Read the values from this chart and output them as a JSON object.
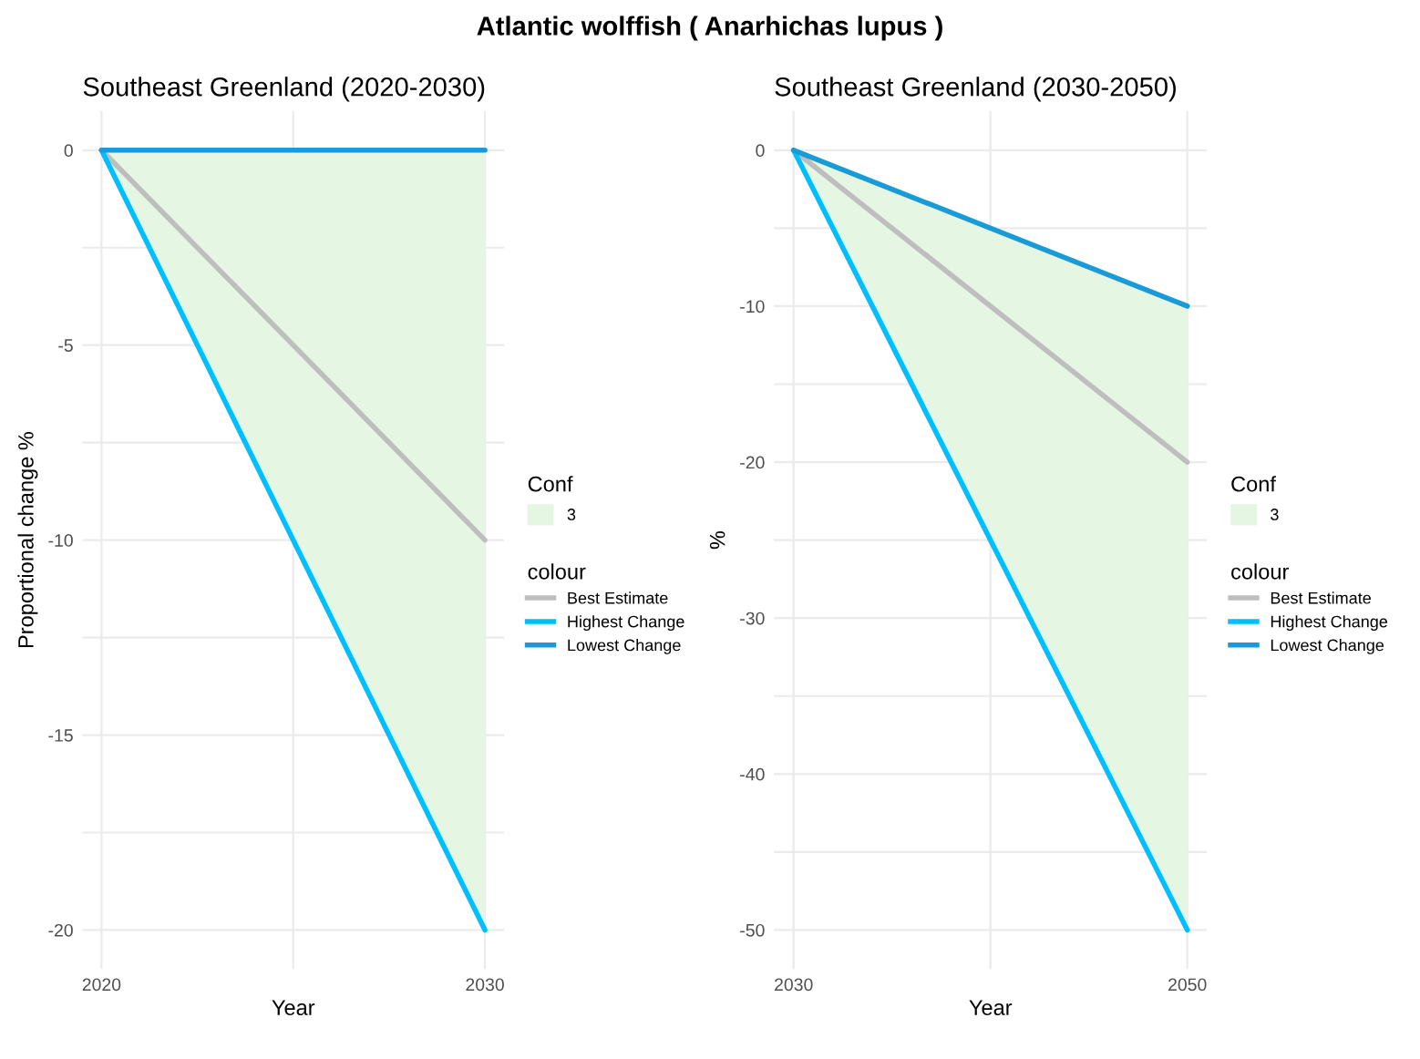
{
  "chart_data": [
    {
      "type": "line",
      "title": "Southeast Greenland (2020-2030)",
      "annotations": [
        "Atlantic wolffish ( Anarhichas lupus )",
        "3"
      ],
      "xlabel": "Year",
      "ylabel": "Proportional change %",
      "legend_title": [
        "Conf",
        "colour"
      ],
      "legend": "right",
      "grid": true,
      "x": [
        2020,
        2030
      ],
      "xlim": [
        2019.5,
        2030.5
      ],
      "xticks": [
        2020,
        {
          "value": 2025,
          "label": null
        },
        2030
      ],
      "ylim": [
        -21,
        1
      ],
      "yticks": [
        0,
        {
          "value": -2.5,
          "label": null
        },
        -5,
        {
          "value": -7.5,
          "label": null
        },
        -10,
        {
          "value": -12.5,
          "label": null
        },
        -15,
        {
          "value": -17.5,
          "label": null
        },
        -20
      ],
      "series": [
        {
          "name": "Best Estimate",
          "color": "#bebebe",
          "values": [
            0,
            -10
          ],
          "lower": [
            0,
            -20
          ],
          "upper": [
            0,
            0
          ]
        },
        {
          "name": "Highest Change",
          "color": "#00bfff",
          "values": [
            0,
            -20
          ]
        },
        {
          "name": "Lowest Change",
          "color": "#1a9ad6",
          "values": [
            0,
            0
          ]
        }
      ]
    },
    {
      "type": "line",
      "title": "Southeast Greenland (2030-2050)",
      "annotations": [
        "3"
      ],
      "xlabel": "Year",
      "ylabel": "%",
      "legend_title": [
        "Conf",
        "colour"
      ],
      "legend": "right",
      "grid": true,
      "x": [
        2030,
        2050
      ],
      "xlim": [
        2029,
        2051
      ],
      "xticks": [
        2030,
        {
          "value": 2040,
          "label": null
        },
        2050
      ],
      "ylim": [
        -52.5,
        2.5
      ],
      "yticks": [
        0,
        {
          "value": -5,
          "label": null
        },
        -10,
        {
          "value": -15,
          "label": null
        },
        -20,
        {
          "value": -25,
          "label": null
        },
        -30,
        {
          "value": -35,
          "label": null
        },
        -40,
        {
          "value": -45,
          "label": null
        },
        -50
      ],
      "series": [
        {
          "name": "Best Estimate",
          "color": "#bebebe",
          "values": [
            0,
            -20
          ],
          "lower": [
            0,
            -50
          ],
          "upper": [
            0,
            -10
          ]
        },
        {
          "name": "Highest Change",
          "color": "#00bfff",
          "values": [
            0,
            -50
          ]
        },
        {
          "name": "Lowest Change",
          "color": "#1a9ad6",
          "values": [
            0,
            -10
          ]
        }
      ]
    }
  ]
}
